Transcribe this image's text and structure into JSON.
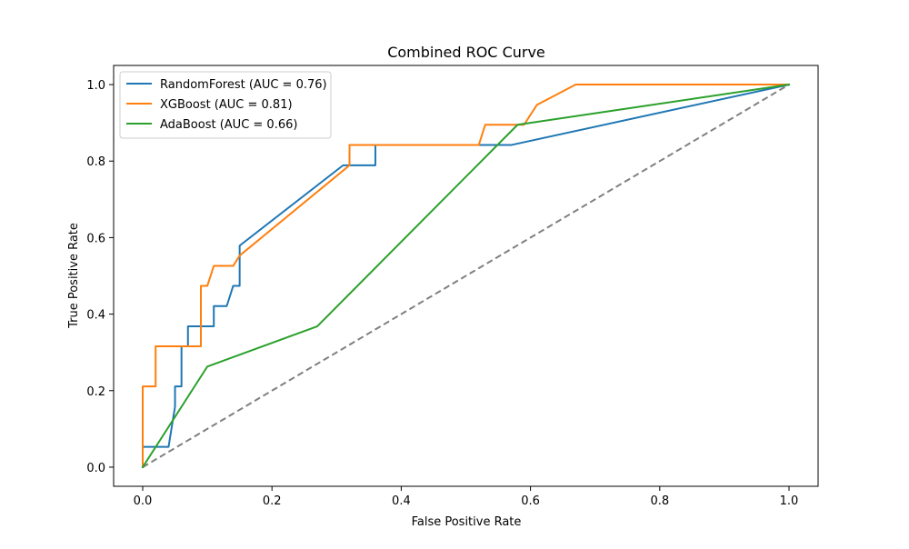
{
  "chart_data": {
    "type": "line",
    "title": "Combined ROC Curve",
    "xlabel": "False Positive Rate",
    "ylabel": "True Positive Rate",
    "xlim": [
      -0.045,
      1.045
    ],
    "ylim": [
      -0.05,
      1.05
    ],
    "xticks": [
      0.0,
      0.2,
      0.4,
      0.6,
      0.8,
      1.0
    ],
    "yticks": [
      0.0,
      0.2,
      0.4,
      0.6,
      0.8,
      1.0
    ],
    "xtick_labels": [
      "0.0",
      "0.2",
      "0.4",
      "0.6",
      "0.8",
      "1.0"
    ],
    "ytick_labels": [
      "0.0",
      "0.2",
      "0.4",
      "0.6",
      "0.8",
      "1.0"
    ],
    "grid": false,
    "legend_position": "upper-left",
    "series": [
      {
        "name": "RandomForest (AUC = 0.76)",
        "color": "#1f77b4",
        "x": [
          0.0,
          0.0,
          0.04,
          0.05,
          0.05,
          0.06,
          0.06,
          0.07,
          0.07,
          0.11,
          0.11,
          0.13,
          0.14,
          0.15,
          0.15,
          0.31,
          0.36,
          0.36,
          0.57,
          1.0
        ],
        "y": [
          0.0,
          0.053,
          0.053,
          0.158,
          0.211,
          0.211,
          0.316,
          0.316,
          0.368,
          0.368,
          0.421,
          0.421,
          0.474,
          0.474,
          0.579,
          0.789,
          0.789,
          0.842,
          0.842,
          1.0
        ]
      },
      {
        "name": "XGBoost (AUC = 0.81)",
        "color": "#ff7f0e",
        "x": [
          0.0,
          0.0,
          0.02,
          0.02,
          0.09,
          0.09,
          0.1,
          0.11,
          0.14,
          0.15,
          0.32,
          0.32,
          0.52,
          0.53,
          0.59,
          0.61,
          0.67,
          1.0
        ],
        "y": [
          0.0,
          0.211,
          0.211,
          0.316,
          0.316,
          0.474,
          0.474,
          0.526,
          0.526,
          0.553,
          0.789,
          0.842,
          0.842,
          0.895,
          0.895,
          0.947,
          1.0,
          1.0
        ]
      },
      {
        "name": "AdaBoost (AUC = 0.66)",
        "color": "#2ca02c",
        "x": [
          0.0,
          0.1,
          0.27,
          0.58,
          1.0
        ],
        "y": [
          0.0,
          0.263,
          0.368,
          0.895,
          1.0
        ]
      }
    ],
    "reference_line": {
      "x": [
        0.0,
        1.0
      ],
      "y": [
        0.0,
        1.0
      ],
      "color": "#808080",
      "style": "dashed"
    }
  }
}
